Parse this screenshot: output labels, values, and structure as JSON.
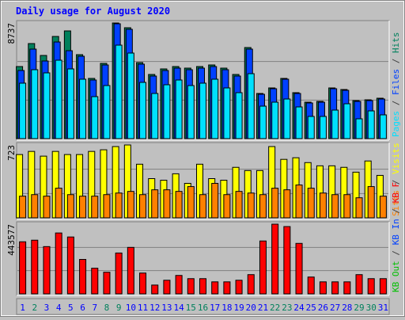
{
  "title": "Daily usage for August 2020",
  "legend_separator": " / ",
  "x_axis": {
    "categories": [
      1,
      2,
      3,
      4,
      5,
      6,
      7,
      8,
      9,
      10,
      11,
      12,
      13,
      14,
      15,
      16,
      17,
      18,
      19,
      20,
      21,
      22,
      23,
      24,
      25,
      26,
      27,
      28,
      29,
      30,
      31
    ],
    "color": "#0000ff",
    "highlight_color": "#00805c",
    "highlight": [
      1,
      7,
      8,
      14,
      15,
      21,
      22,
      28,
      29
    ]
  },
  "chart_data": [
    {
      "type": "bar",
      "ylim": [
        0,
        8737
      ],
      "yticks": [
        8737
      ],
      "series": [
        {
          "name": "Hits",
          "color": "#00805c",
          "values": [
            5445,
            7181,
            6283,
            7719,
            8138,
            6343,
            4548,
            5685,
            8737,
            8378,
            5745,
            4847,
            5266,
            5446,
            5326,
            5446,
            5565,
            5326,
            4847,
            6882,
            3411,
            3830,
            4548,
            3471,
            2753,
            2813,
            3830,
            3710,
            2872,
            2932,
            3052
          ]
        },
        {
          "name": "Files",
          "color": "#0040ff",
          "values": [
            5146,
            6762,
            5864,
            7300,
            6642,
            6223,
            4428,
            5565,
            8677,
            8258,
            5625,
            4727,
            5146,
            5326,
            5206,
            5326,
            5445,
            5206,
            4727,
            6762,
            3351,
            3770,
            4488,
            3411,
            2693,
            2753,
            3770,
            3650,
            2812,
            2872,
            2992
          ]
        },
        {
          "name": "Pages",
          "color": "#00e0ff",
          "values": [
            4189,
            5206,
            4967,
            5924,
            5266,
            4488,
            3172,
            4009,
            7061,
            6463,
            4249,
            3411,
            4069,
            4428,
            4009,
            4189,
            4488,
            3830,
            3471,
            4907,
            2453,
            2753,
            2992,
            2394,
            1676,
            1676,
            2154,
            2633,
            1496,
            2094,
            1795
          ]
        }
      ]
    },
    {
      "type": "bar",
      "ylim": [
        0,
        723
      ],
      "yticks": [
        723
      ],
      "series": [
        {
          "name": "Visits",
          "color": "#ffff00",
          "values": [
            628,
            659,
            612,
            659,
            628,
            628,
            659,
            675,
            707,
            723,
            532,
            389,
            373,
            437,
            342,
            532,
            389,
            373,
            501,
            469,
            469,
            707,
            580,
            596,
            548,
            516,
            516,
            501,
            453,
            564,
            421
          ]
        },
        {
          "name": "Sites",
          "color": "#ff8000",
          "values": [
            215,
            230,
            215,
            294,
            230,
            215,
            215,
            230,
            246,
            262,
            230,
            278,
            278,
            262,
            310,
            230,
            342,
            230,
            262,
            246,
            230,
            294,
            278,
            326,
            294,
            246,
            230,
            230,
            199,
            310,
            215
          ]
        }
      ]
    },
    {
      "type": "bar",
      "ylim": [
        0,
        443577
      ],
      "yticks": [
        443577
      ],
      "series": [
        {
          "name": "KB F",
          "color": "#ff0000",
          "values": [
            331409,
            341606,
            300817,
            387494,
            361999,
            219238,
            163154,
            137664,
            260030,
            295722,
            132564,
            56085,
            86676,
            117268,
            96874,
            96874,
            76479,
            76479,
            86676,
            122367,
            336508,
            443577,
            428284,
            321213,
            107071,
            76479,
            76479,
            76479,
            122367,
            96874,
            96874
          ]
        },
        {
          "name": "KB In",
          "color": "#0040ff"
        },
        {
          "name": "KB Out",
          "color": "#00c000"
        }
      ]
    }
  ]
}
